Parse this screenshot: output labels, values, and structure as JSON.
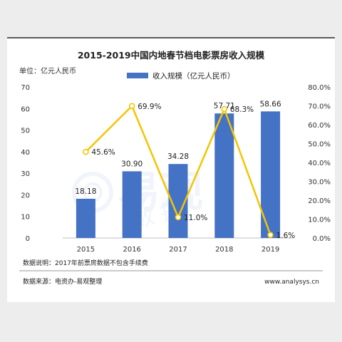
{
  "chart_data": {
    "type": "bar+line",
    "title": "2015-2019中国内地春节档电影票房收入规模",
    "unit_label": "单位：亿元人民币",
    "categories": [
      "2015",
      "2016",
      "2017",
      "2018",
      "2019"
    ],
    "bar_series": {
      "name": "收入规模（亿元人民币）",
      "values": [
        18.18,
        30.9,
        34.28,
        57.71,
        58.66
      ],
      "labels": [
        "18.18",
        "30.90",
        "34.28",
        "57.71",
        "58.66"
      ],
      "color": "#4472c4"
    },
    "line_series": {
      "values": [
        45.6,
        69.9,
        11.0,
        68.3,
        1.6
      ],
      "labels": [
        "45.6%",
        "69.9%",
        "11.0%",
        "68.3%",
        "1.6%"
      ],
      "color": "#f5c400"
    },
    "y_left": {
      "min": 0,
      "max": 70,
      "ticks": [
        "0",
        "10",
        "20",
        "30",
        "40",
        "50",
        "60",
        "70"
      ]
    },
    "y_right": {
      "min": 0,
      "max": 80,
      "ticks": [
        "0.0%",
        "10.0%",
        "20.0%",
        "30.0%",
        "40.0%",
        "50.0%",
        "60.0%",
        "70.0%",
        "80.0%"
      ]
    },
    "legend_position": "top-center",
    "grid": false
  },
  "notes": {
    "data_note": "数据说明：2017年前票房数据不包含手续费",
    "source": "数据来源：电资办-易观整理",
    "website": "www.analysys.cn"
  },
  "watermark": "易观"
}
